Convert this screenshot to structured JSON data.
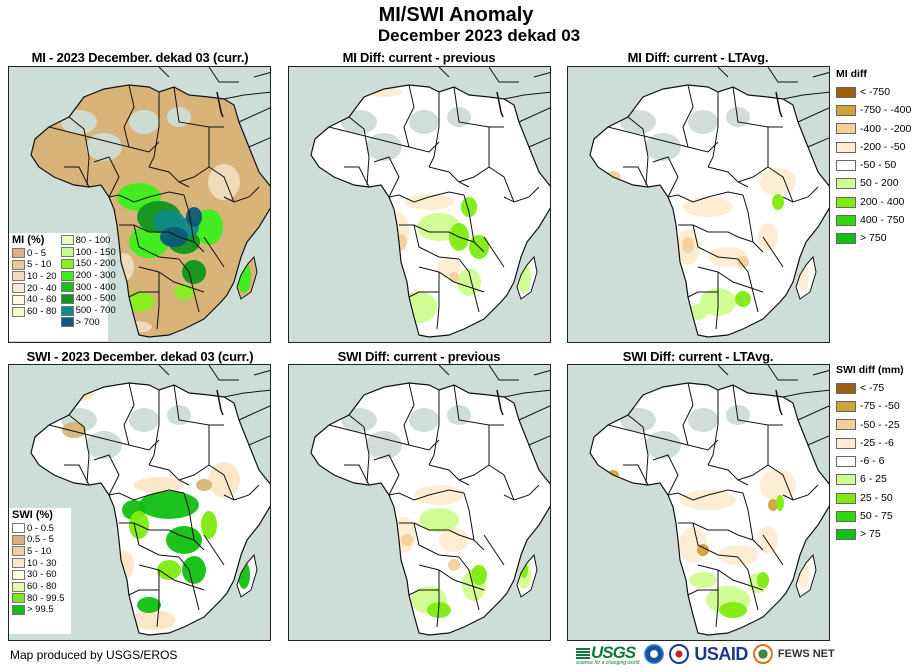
{
  "header": {
    "title": "MI/SWI Anomaly",
    "subtitle": "December 2023 dekad 03"
  },
  "panels": [
    {
      "id": "mi-current",
      "title": "MI - 2023 December. dekad 03 (curr.)",
      "scheme": "mi"
    },
    {
      "id": "mi-diff-previous",
      "title": "MI Diff: current - previous",
      "scheme": "midiff1"
    },
    {
      "id": "mi-diff-ltavg",
      "title": "MI Diff: current - LTAvg.",
      "scheme": "midiff2"
    },
    {
      "id": "swi-current",
      "title": "SWI - 2023 December. dekad 03 (curr.)",
      "scheme": "swi"
    },
    {
      "id": "swi-diff-previous",
      "title": "SWI Diff: current - previous",
      "scheme": "swidiff1"
    },
    {
      "id": "swi-diff-ltavg",
      "title": "SWI Diff: current - LTAvg.",
      "scheme": "swidiff2"
    }
  ],
  "legends": {
    "mi": {
      "title": "MI (%)",
      "items": [
        {
          "label": "0 - 5",
          "color": "#d8b47a"
        },
        {
          "label": "5 - 10",
          "color": "#e6c899"
        },
        {
          "label": "10 - 20",
          "color": "#f0dcbd"
        },
        {
          "label": "20 - 40",
          "color": "#f7e8d4"
        },
        {
          "label": "40 - 60",
          "color": "#fdfbe3"
        },
        {
          "label": "60 - 80",
          "color": "#f2fcc8"
        },
        {
          "label": "80 - 100",
          "color": "#e4fcc0"
        },
        {
          "label": "100 - 150",
          "color": "#c8fc90"
        },
        {
          "label": "150 - 200",
          "color": "#88f020"
        },
        {
          "label": "200 - 300",
          "color": "#3cf01c"
        },
        {
          "label": "300 - 400",
          "color": "#18c018"
        },
        {
          "label": "400 - 500",
          "color": "#10961c"
        },
        {
          "label": "500 - 700",
          "color": "#108a88"
        },
        {
          "label": "> 700",
          "color": "#0f5a7a"
        }
      ]
    },
    "swi": {
      "title": "SWI (%)",
      "items": [
        {
          "label": "0 - 0.5",
          "color": "#ffffff"
        },
        {
          "label": "0.5 - 5",
          "color": "#d8b47a"
        },
        {
          "label": "5 - 10",
          "color": "#f0d0a0"
        },
        {
          "label": "10 - 30",
          "color": "#fce6c8"
        },
        {
          "label": "30 - 60",
          "color": "#fefde0"
        },
        {
          "label": "60 - 80",
          "color": "#e8fcb0"
        },
        {
          "label": "80 - 99.5",
          "color": "#7ee81c"
        },
        {
          "label": "> 99.5",
          "color": "#10c010"
        }
      ]
    },
    "mi_diff": {
      "title": "MI diff",
      "items": [
        {
          "label": "< -750",
          "color": "#9a6010"
        },
        {
          "label": "-750 - -400",
          "color": "#d0a23a"
        },
        {
          "label": "-400 - -200",
          "color": "#f2d09a"
        },
        {
          "label": "-200 - -50",
          "color": "#fdecd0"
        },
        {
          "label": "-50 - 50",
          "color": "#ffffff"
        },
        {
          "label": "50 - 200",
          "color": "#d0fc90"
        },
        {
          "label": "200 - 400",
          "color": "#7eec10"
        },
        {
          "label": "400 - 750",
          "color": "#30d810"
        },
        {
          "label": "> 750",
          "color": "#10c010"
        }
      ]
    },
    "swi_diff": {
      "title": "SWI diff (mm)",
      "items": [
        {
          "label": "< -75",
          "color": "#9a6010"
        },
        {
          "label": "-75 - -50",
          "color": "#d0a23a"
        },
        {
          "label": "-50 - -25",
          "color": "#f2d09a"
        },
        {
          "label": "-25 - -6",
          "color": "#fdecd0"
        },
        {
          "label": "-6 - 6",
          "color": "#ffffff"
        },
        {
          "label": "6 - 25",
          "color": "#d0fc90"
        },
        {
          "label": "25 - 50",
          "color": "#7eec10"
        },
        {
          "label": "50 - 75",
          "color": "#30d810"
        },
        {
          "label": "> 75",
          "color": "#10c010"
        }
      ]
    }
  },
  "map_colors": {
    "ocean": "#cfddd8",
    "nodata": "#d2dcd8",
    "border": "#111111"
  },
  "footer": {
    "credit": "Map produced by USGS/EROS",
    "logos": [
      "USGS",
      "NOAA",
      "USAID",
      "FEWS NET"
    ],
    "usgs_tagline": "science for a changing world",
    "usaid_tagline": "FROM THE AMERICAN PEOPLE"
  }
}
